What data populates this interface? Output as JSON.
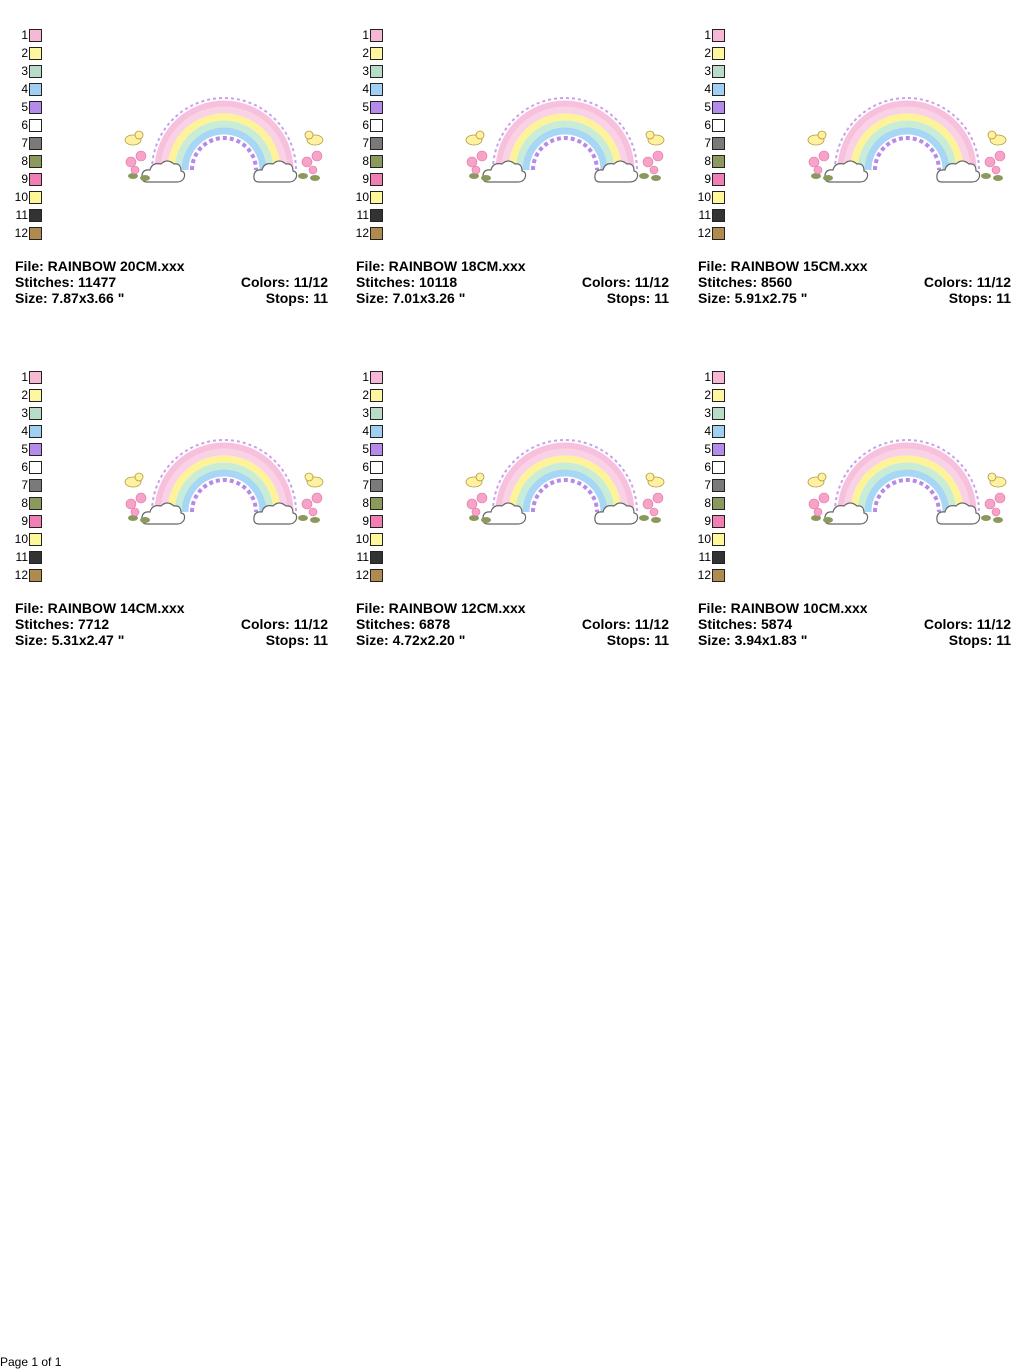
{
  "palette": {
    "numbers": [
      "1",
      "2",
      "3",
      "4",
      "5",
      "6",
      "7",
      "8",
      "9",
      "10",
      "11",
      "12"
    ],
    "colors": [
      "#f7b8d6",
      "#fff7a0",
      "#b8dcc8",
      "#9fd0f2",
      "#b58ae8",
      "#ffffff",
      "#7a7a7a",
      "#8a9a5c",
      "#f27fb4",
      "#fff89a",
      "#333333",
      "#b08a4e"
    ]
  },
  "cards": [
    {
      "file": "File: RAINBOW 20CM.xxx",
      "stitches": "Stitches: 11477",
      "colors": "Colors: 11/12",
      "size": "Size: 7.87x3.66 \"",
      "stops": "Stops: 11"
    },
    {
      "file": "File: RAINBOW 18CM.xxx",
      "stitches": "Stitches: 10118",
      "colors": "Colors: 11/12",
      "size": "Size: 7.01x3.26 \"",
      "stops": "Stops: 11"
    },
    {
      "file": "File: RAINBOW 15CM.xxx",
      "stitches": "Stitches: 8560",
      "colors": "Colors: 11/12",
      "size": "Size: 5.91x2.75 \"",
      "stops": "Stops: 11"
    },
    {
      "file": "File: RAINBOW 14CM.xxx",
      "stitches": "Stitches: 7712",
      "colors": "Colors: 11/12",
      "size": "Size: 5.31x2.47 \"",
      "stops": "Stops: 11"
    },
    {
      "file": "File: RAINBOW 12CM.xxx",
      "stitches": "Stitches: 6878",
      "colors": "Colors: 11/12",
      "size": "Size: 4.72x2.20 \"",
      "stops": "Stops: 11"
    },
    {
      "file": "File: RAINBOW 10CM.xxx",
      "stitches": "Stitches: 5874",
      "colors": "Colors: 11/12",
      "size": "Size: 3.94x1.83 \"",
      "stops": "Stops: 11"
    }
  ],
  "footer": {
    "page": "Page 1 of 1"
  }
}
